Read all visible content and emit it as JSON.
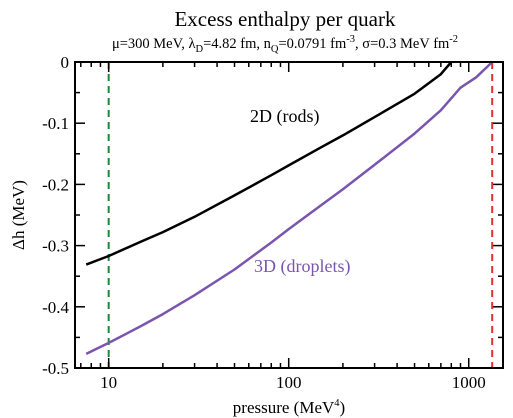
{
  "chart_data": {
    "type": "line",
    "title": "Excess enthalpy per quark",
    "subtitle_parts": {
      "mu": "μ=300 MeV, λ",
      "mu_sub": "D",
      "lambda_val": "=4.82 fm, n",
      "n_sub": "Q",
      "n_val": "=0.0791 fm",
      "n_sup": "-3",
      "sigma": ", σ=0.3 MeV fm",
      "sigma_sup": "-2"
    },
    "xlabel_main": "pressure (MeV",
    "xlabel_sup": "4",
    "xlabel_close": ")",
    "ylabel": "Δh (MeV)",
    "x_scale": "log",
    "xlim": [
      6.5,
      1550
    ],
    "ylim": [
      -0.5,
      0
    ],
    "x_ticks": [
      {
        "value": 10,
        "label": "10"
      },
      {
        "value": 100,
        "label": "100"
      },
      {
        "value": 1000,
        "label": "1000"
      }
    ],
    "y_ticks": [
      {
        "value": 0,
        "label": "0"
      },
      {
        "value": -0.1,
        "label": "-0.1"
      },
      {
        "value": -0.2,
        "label": "-0.2"
      },
      {
        "value": -0.3,
        "label": "-0.3"
      },
      {
        "value": -0.4,
        "label": "-0.4"
      },
      {
        "value": -0.5,
        "label": "-0.5"
      }
    ],
    "series": [
      {
        "name": "2D (rods)",
        "color": "#000000",
        "x": [
          7.5,
          10,
          15,
          20,
          30,
          50,
          80,
          100,
          150,
          200,
          300,
          500,
          700,
          800
        ],
        "y": [
          -0.331,
          -0.317,
          -0.294,
          -0.278,
          -0.253,
          -0.218,
          -0.185,
          -0.169,
          -0.14,
          -0.12,
          -0.09,
          -0.052,
          -0.02,
          0.0
        ]
      },
      {
        "name": "3D (droplets)",
        "color": "#7a55b0",
        "x": [
          7.5,
          10,
          15,
          20,
          30,
          50,
          80,
          100,
          150,
          200,
          300,
          500,
          700,
          900,
          1100,
          1350
        ],
        "y": [
          -0.477,
          -0.459,
          -0.432,
          -0.412,
          -0.381,
          -0.339,
          -0.295,
          -0.273,
          -0.235,
          -0.208,
          -0.168,
          -0.117,
          -0.079,
          -0.042,
          -0.025,
          0.0
        ]
      }
    ],
    "reference_lines": [
      {
        "x": 10,
        "color": "#1a8a3a",
        "style": "dashed"
      },
      {
        "x": 1350,
        "color": "#e03030",
        "style": "dashed"
      }
    ]
  }
}
